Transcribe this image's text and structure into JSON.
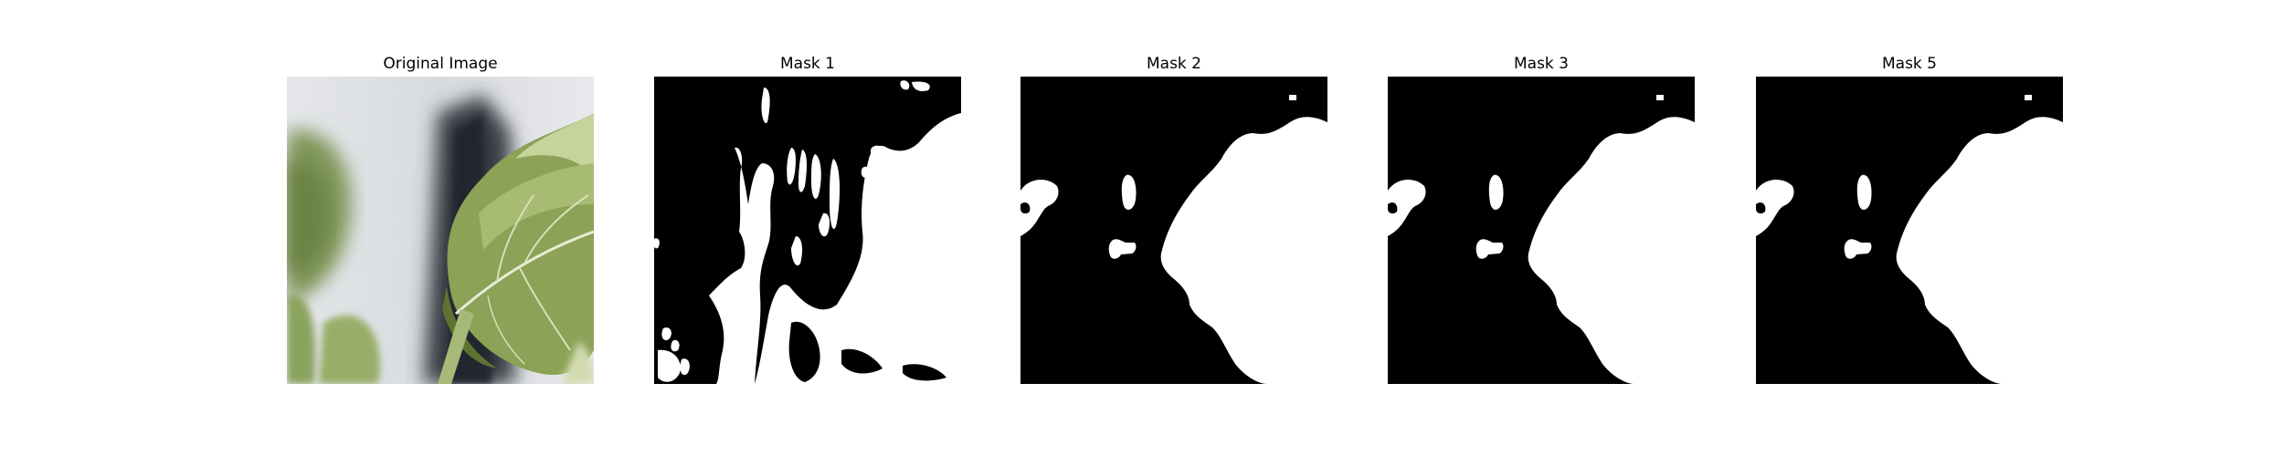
{
  "panels": [
    {
      "title": "Original Image",
      "kind": "photo"
    },
    {
      "title": "Mask 1",
      "kind": "mask"
    },
    {
      "title": "Mask 2",
      "kind": "mask"
    },
    {
      "title": "Mask 3",
      "kind": "mask"
    },
    {
      "title": "Mask 5",
      "kind": "mask"
    }
  ],
  "colors": {
    "mask_background": "#000000",
    "mask_foreground": "#ffffff",
    "photo_background": "#dfe1e4",
    "leaf_green": "#8ba257",
    "leaf_dark": "#55682e",
    "leaf_light": "#b9c98a",
    "stem_dark": "#2b2f36"
  }
}
